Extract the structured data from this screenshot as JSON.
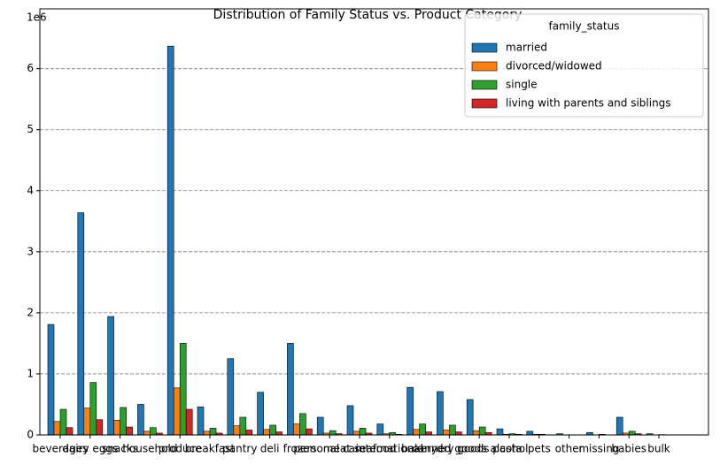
{
  "chart_data": {
    "type": "bar",
    "title": "Distribution of Family Status vs. Product Category",
    "axis_offset": "1e6",
    "legend_title": "family_status",
    "legend": "upper right",
    "grid": true,
    "categories": [
      "beverages",
      "dairy eggs",
      "snacks",
      "household",
      "produce",
      "breakfast",
      "pantry",
      "deli",
      "frozen",
      "personal care",
      "meat seafood",
      "international",
      "bakery",
      "canned goods",
      "dry goods pasta",
      "alcohol",
      "pets",
      "other",
      "missing",
      "babies",
      "bulk"
    ],
    "series": [
      {
        "name": "married",
        "color": "#1f77b4",
        "values": [
          1.81,
          3.64,
          1.94,
          0.5,
          6.37,
          0.46,
          1.25,
          0.7,
          1.5,
          0.29,
          0.48,
          0.18,
          0.78,
          0.71,
          0.58,
          0.1,
          0.06,
          0.02,
          0.04,
          0.29,
          0.02
        ]
      },
      {
        "name": "divorced/widowed",
        "color": "#ff7f0e",
        "values": [
          0.22,
          0.44,
          0.24,
          0.06,
          0.77,
          0.06,
          0.15,
          0.09,
          0.18,
          0.03,
          0.06,
          0.02,
          0.09,
          0.08,
          0.07,
          0.01,
          0.01,
          0.0,
          0.0,
          0.03,
          0.0
        ]
      },
      {
        "name": "single",
        "color": "#2ca02c",
        "values": [
          0.42,
          0.86,
          0.45,
          0.12,
          1.5,
          0.11,
          0.29,
          0.16,
          0.35,
          0.07,
          0.11,
          0.04,
          0.18,
          0.16,
          0.13,
          0.02,
          0.01,
          0.0,
          0.01,
          0.06,
          0.005
        ]
      },
      {
        "name": "living with parents and siblings",
        "color": "#d62728",
        "values": [
          0.12,
          0.25,
          0.13,
          0.03,
          0.42,
          0.03,
          0.08,
          0.05,
          0.1,
          0.02,
          0.03,
          0.01,
          0.05,
          0.05,
          0.04,
          0.01,
          0.0,
          0.0,
          0.0,
          0.02,
          0.0
        ]
      }
    ],
    "ylim": [
      0,
      6.98
    ],
    "yticks": [
      0,
      1,
      2,
      3,
      4,
      5,
      6
    ]
  }
}
